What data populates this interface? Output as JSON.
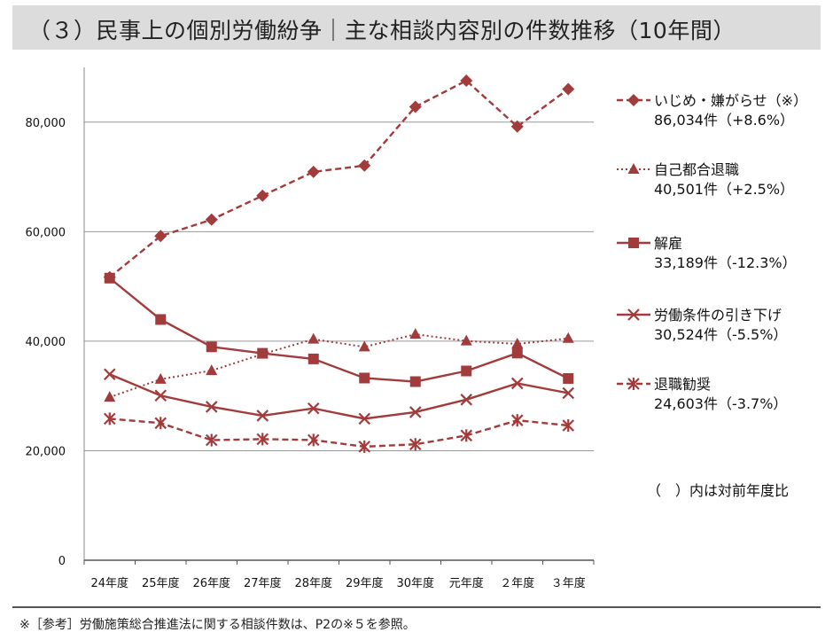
{
  "header": {
    "title": "（３）民事上の個別労働紛争｜主な相談内容別の件数推移（10年間）"
  },
  "chart_data": {
    "type": "line",
    "categories": [
      "24年度",
      "25年度",
      "26年度",
      "27年度",
      "28年度",
      "29年度",
      "30年度",
      "元年度",
      "２年度",
      "３年度"
    ],
    "ylim": [
      0,
      90000
    ],
    "yticks": [
      0,
      20000,
      40000,
      60000,
      80000
    ],
    "ytick_labels": [
      "0",
      "20,000",
      "40,000",
      "60,000",
      "80,000"
    ],
    "grid": true,
    "legend_position": "right",
    "series": [
      {
        "name": "いじめ・嫌がらせ（※）",
        "summary": "86,034件（+8.6%）",
        "marker": "diamond",
        "line_style": "dashed",
        "color": "#a23b3b",
        "values": [
          51670,
          59197,
          62191,
          66566,
          70917,
          72067,
          82797,
          87570,
          79190,
          86034
        ]
      },
      {
        "name": "自己都合退職",
        "summary": "40,501件（+2.5%）",
        "marker": "triangle",
        "line_style": "dotted",
        "color": "#a23b3b",
        "values": [
          29763,
          33049,
          34626,
          37648,
          40364,
          38954,
          41258,
          40044,
          39498,
          40501
        ]
      },
      {
        "name": "解雇",
        "summary": "33,189件（-12.3%）",
        "marker": "square",
        "line_style": "solid",
        "color": "#a23b3b",
        "values": [
          51515,
          43956,
          38966,
          37787,
          36760,
          33269,
          32614,
          34561,
          37826,
          33189
        ]
      },
      {
        "name": "労働条件の引き下げ",
        "summary": "30,524件（-5.5%）",
        "marker": "x",
        "line_style": "solid",
        "color": "#a23b3b",
        "values": [
          33955,
          30067,
          28015,
          26392,
          27723,
          25841,
          27044,
          29331,
          32301,
          30524
        ]
      },
      {
        "name": "退職勧奨",
        "summary": "24,603件（-3.7%）",
        "marker": "asterisk",
        "line_style": "dashed",
        "color": "#a23b3b",
        "values": [
          25838,
          25041,
          21928,
          22110,
          21953,
          20736,
          21170,
          22773,
          25549,
          24603
        ]
      }
    ]
  },
  "note": "（　）内は対前年度比",
  "footnote": "※［参考］労働施策総合推進法に関する相談件数は、P2の※５を参照。"
}
